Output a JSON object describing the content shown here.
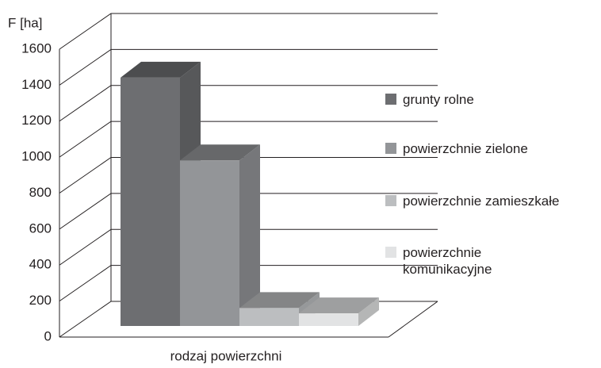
{
  "chart_data": {
    "type": "bar3d",
    "y_label": "F [ha]",
    "x_label": "rodzaj powierzchni",
    "categories": [
      null
    ],
    "series": [
      {
        "name": "grunty rolne",
        "color": "#6d6e71",
        "values": [
          1380
        ]
      },
      {
        "name": "powierzchnie zielone",
        "color": "#939598",
        "values": [
          920
        ]
      },
      {
        "name": "powierzchnie zamieszkałe",
        "color": "#bcbec0",
        "values": [
          100
        ]
      },
      {
        "name": "powierzchnie\nkomunikacyjne",
        "color": "#e2e3e4",
        "values": [
          70
        ]
      }
    ],
    "ylim": [
      0,
      1600
    ],
    "yticks": [
      0,
      200,
      400,
      600,
      800,
      1000,
      1200,
      1400,
      1600
    ],
    "grid": true
  }
}
